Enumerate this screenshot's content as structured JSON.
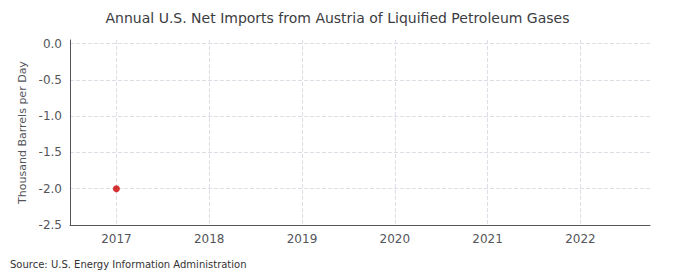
{
  "chart_data": {
    "type": "scatter",
    "title": "Annual U.S. Net Imports from Austria of Liquified Petroleum Gases",
    "ylabel": "Thousand Barrels per Day",
    "source": "Source: U.S. Energy Information Administration",
    "x": [
      2017
    ],
    "values": [
      -2.0
    ],
    "color": "#cc0000",
    "marker": "circle",
    "xlim": [
      2016.5,
      2022.75
    ],
    "xticks": [
      2017,
      2018,
      2019,
      2020,
      2021,
      2022
    ],
    "ylim": [
      -2.5,
      0.05
    ],
    "yticks": [
      {
        "value": 0.0,
        "label": "0.0"
      },
      -0.5,
      {
        "value": -1.0,
        "label": "-1.0"
      },
      -1.5,
      {
        "value": -2.0,
        "label": "-2.0"
      },
      -2.5
    ],
    "grid": true
  }
}
